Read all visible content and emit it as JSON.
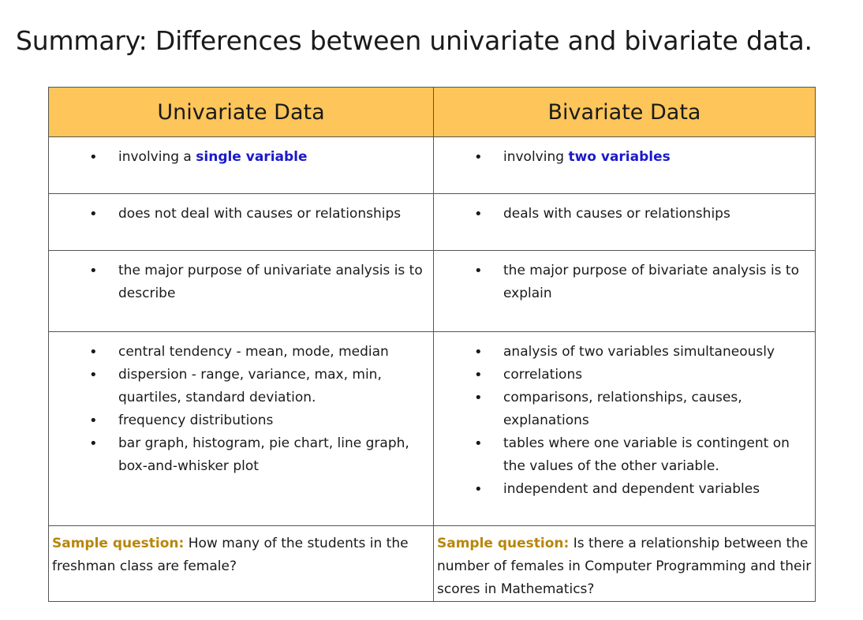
{
  "title": "Summary:  Differences between univariate and bivariate data.",
  "headers": {
    "left": "Univariate Data",
    "right": "Bivariate Data"
  },
  "row1": {
    "left_prefix": "involving a ",
    "left_emph": "single variable",
    "right_prefix": "involving ",
    "right_emph": "two variables"
  },
  "row2": {
    "left": "does not deal with causes or relationships",
    "right": "deals with causes or relationships"
  },
  "row3": {
    "left": "the major purpose of univariate analysis is to describe",
    "right": "the major purpose of bivariate analysis is to explain"
  },
  "row4": {
    "left": [
      "central tendency - mean, mode, median",
      "dispersion - range, variance, max, min, quartiles, standard deviation.",
      "frequency distributions",
      "bar graph, histogram, pie chart, line graph, box-and-whisker plot"
    ],
    "right": [
      "analysis of two variables simultaneously",
      "correlations",
      "comparisons, relationships, causes, explanations",
      "tables where one variable is contingent on the values of the other variable.",
      "independent and dependent variables"
    ]
  },
  "sample": {
    "label": "Sample question:",
    "left_text": " How many of the students in the freshman class are female?",
    "right_text": " Is there a relationship between the number of females in Computer Programming and their scores in Mathematics?"
  },
  "colors": {
    "header_bg": "#fdc55a",
    "emphasis": "#1a1acc",
    "sample_label": "#b8860b",
    "border": "#555555"
  }
}
